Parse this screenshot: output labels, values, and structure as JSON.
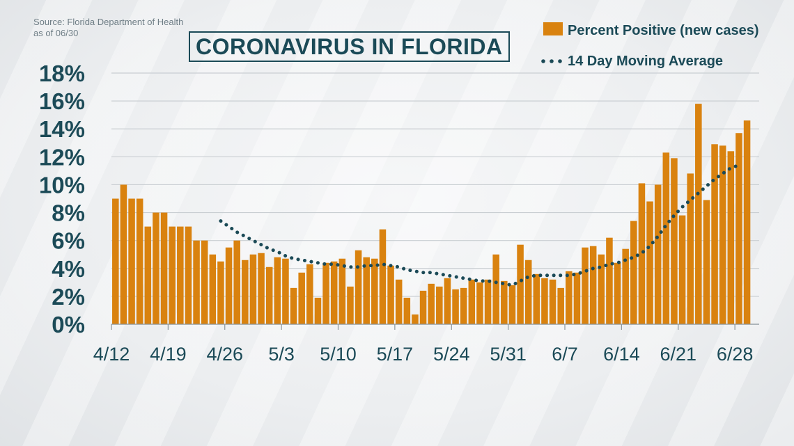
{
  "source": {
    "line1": "Source: Florida Department of Health",
    "line2": "as of 06/30"
  },
  "colors": {
    "bar": "#d9820f",
    "line": "#1b4a57",
    "grid": "#c9ced2",
    "text": "#1b4a57"
  },
  "chart_data": {
    "type": "bar",
    "title": "CORONAVIRUS IN FLORIDA",
    "xlabel": "",
    "ylabel": "",
    "ylim": [
      0,
      18
    ],
    "yticks": [
      0,
      2,
      4,
      6,
      8,
      10,
      12,
      14,
      16,
      18
    ],
    "ytick_labels": [
      "0%",
      "2%",
      "4%",
      "6%",
      "8%",
      "10%",
      "12%",
      "14%",
      "16%",
      "18%"
    ],
    "grid": true,
    "legend_position": "top-right",
    "categories": [
      "4/12",
      "4/13",
      "4/14",
      "4/15",
      "4/16",
      "4/17",
      "4/18",
      "4/19",
      "4/20",
      "4/21",
      "4/22",
      "4/23",
      "4/24",
      "4/25",
      "4/26",
      "4/27",
      "4/28",
      "4/29",
      "4/30",
      "5/1",
      "5/2",
      "5/3",
      "5/4",
      "5/5",
      "5/6",
      "5/7",
      "5/8",
      "5/9",
      "5/10",
      "5/11",
      "5/12",
      "5/13",
      "5/14",
      "5/15",
      "5/16",
      "5/17",
      "5/18",
      "5/19",
      "5/20",
      "5/21",
      "5/22",
      "5/23",
      "5/24",
      "5/25",
      "5/26",
      "5/27",
      "5/28",
      "5/29",
      "5/30",
      "5/31",
      "6/1",
      "6/2",
      "6/3",
      "6/4",
      "6/5",
      "6/6",
      "6/7",
      "6/8",
      "6/9",
      "6/10",
      "6/11",
      "6/12",
      "6/13",
      "6/14",
      "6/15",
      "6/16",
      "6/17",
      "6/18",
      "6/19",
      "6/20",
      "6/21",
      "6/22",
      "6/23",
      "6/24",
      "6/25",
      "6/26",
      "6/27",
      "6/28",
      "6/29",
      "6/30"
    ],
    "xtick_labels": [
      "4/12",
      "4/19",
      "4/26",
      "5/3",
      "5/10",
      "5/17",
      "5/24",
      "5/31",
      "6/7",
      "6/14",
      "6/21",
      "6/28"
    ],
    "series": [
      {
        "name": "Percent Positive (new cases)",
        "type": "bar",
        "values": [
          9.0,
          10.0,
          9.0,
          9.0,
          7.0,
          8.0,
          8.0,
          7.0,
          7.0,
          7.0,
          6.0,
          6.0,
          5.0,
          4.5,
          5.5,
          6.0,
          4.6,
          5.0,
          5.1,
          4.1,
          4.8,
          4.7,
          2.6,
          3.7,
          4.3,
          1.9,
          4.4,
          4.5,
          4.7,
          2.7,
          5.3,
          4.8,
          4.7,
          6.8,
          4.2,
          3.2,
          1.9,
          0.7,
          2.4,
          2.9,
          2.7,
          3.3,
          2.5,
          2.6,
          3.2,
          3.0,
          3.2,
          5.0,
          3.1,
          2.8,
          5.7,
          4.6,
          3.6,
          3.3,
          3.2,
          2.6,
          3.8,
          3.7,
          5.5,
          5.6,
          5.0,
          6.2,
          4.4,
          5.4,
          7.4,
          10.1,
          8.8,
          10.0,
          12.3,
          11.9,
          7.8,
          10.8,
          15.8,
          8.9,
          12.9,
          12.8,
          12.4,
          13.7,
          14.6,
          0
        ]
      },
      {
        "name": "14 Day Moving Average",
        "type": "line",
        "style": "dotted",
        "values": [
          null,
          null,
          null,
          null,
          null,
          null,
          null,
          null,
          null,
          null,
          null,
          null,
          null,
          7.4,
          7.0,
          6.6,
          6.3,
          6.0,
          5.7,
          5.4,
          5.2,
          4.9,
          4.7,
          4.6,
          4.5,
          4.4,
          4.3,
          4.3,
          4.2,
          4.1,
          4.1,
          4.2,
          4.2,
          4.3,
          4.2,
          4.1,
          3.9,
          3.8,
          3.7,
          3.7,
          3.6,
          3.5,
          3.4,
          3.3,
          3.2,
          3.1,
          3.1,
          3.0,
          2.9,
          2.8,
          3.1,
          3.4,
          3.5,
          3.5,
          3.5,
          3.5,
          3.5,
          3.6,
          3.8,
          4.0,
          4.1,
          4.3,
          4.4,
          4.6,
          4.8,
          5.1,
          5.6,
          6.3,
          7.1,
          7.8,
          8.4,
          8.9,
          9.4,
          9.9,
          10.4,
          10.8,
          11.2,
          11.4,
          null,
          null
        ]
      }
    ]
  }
}
